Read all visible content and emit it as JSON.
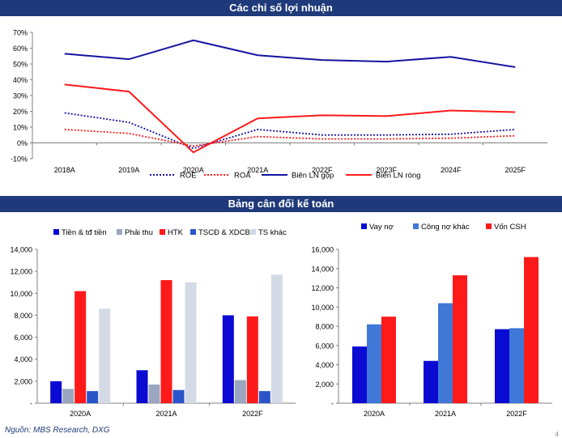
{
  "sections": {
    "profit_title": "Các chỉ số lợi nhuận",
    "balance_title": "Bảng cân đối kế toán"
  },
  "footer": {
    "source": "Nguồn: MBS Research, DXG",
    "page_number": "4"
  },
  "chart_data": [
    {
      "type": "line",
      "title": "",
      "categories": [
        "2018A",
        "2019A",
        "2020A",
        "2021A",
        "2022F",
        "2023F",
        "2024F",
        "2025F"
      ],
      "y_ticks": [
        "70%",
        "60%",
        "50%",
        "40%",
        "30%",
        "20%",
        "10%",
        "0%",
        "-10%"
      ],
      "ylim": [
        -10,
        70
      ],
      "unit": "%",
      "legend_position": "bottom",
      "series": [
        {
          "name": "ROE",
          "color": "#1414a0",
          "style": "dotted",
          "values": [
            19,
            13,
            -3.5,
            8.5,
            5,
            5,
            5.5,
            8.5
          ]
        },
        {
          "name": "ROA",
          "color": "#ff1a1a",
          "style": "dotted",
          "values": [
            8.5,
            6,
            -2,
            4,
            2.5,
            2.5,
            3,
            4.5
          ]
        },
        {
          "name": "Biên LN gộp",
          "color": "#1414a0",
          "style": "solid",
          "values": [
            56.5,
            53,
            65,
            55.5,
            52.5,
            51.5,
            54.5,
            48
          ]
        },
        {
          "name": "Biên LN ròng",
          "color": "#ff1a1a",
          "style": "solid",
          "values": [
            37,
            32.5,
            -6,
            15.5,
            17.5,
            17,
            20.5,
            19.5
          ]
        }
      ]
    },
    {
      "type": "bar",
      "title": "",
      "categories": [
        "2020A",
        "2021A",
        "2022F"
      ],
      "y_ticks": [
        "14,000",
        "12,000",
        "10,000",
        "8,000",
        "6,000",
        "4,000",
        "2,000",
        "-"
      ],
      "ylim": [
        0,
        14000
      ],
      "legend_position": "top",
      "series": [
        {
          "name": "Tiền & tđ tiền",
          "color": "#0a0ad2",
          "values": [
            2000,
            3000,
            8000
          ]
        },
        {
          "name": "Phải thu",
          "color": "#9aa6bf",
          "values": [
            1300,
            1700,
            2100
          ]
        },
        {
          "name": "HTK",
          "color": "#ff1a1a",
          "values": [
            10200,
            11200,
            7900
          ]
        },
        {
          "name": "TSCĐ & XDCB",
          "color": "#2a55c8",
          "values": [
            1100,
            1200,
            1100
          ]
        },
        {
          "name": "TS khác",
          "color": "#d3dae5",
          "values": [
            8600,
            11000,
            11700
          ]
        }
      ]
    },
    {
      "type": "bar",
      "title": "",
      "categories": [
        "2020A",
        "2021A",
        "2022F"
      ],
      "y_ticks": [
        "16,000",
        "14,000",
        "12,000",
        "10,000",
        "8,000",
        "6,000",
        "4,000",
        "2,000",
        "-"
      ],
      "ylim": [
        0,
        16000
      ],
      "legend_position": "top",
      "series": [
        {
          "name": "Vay nợ",
          "color": "#0a0ad2",
          "values": [
            5900,
            4400,
            7700
          ]
        },
        {
          "name": "Công nợ khác",
          "color": "#3f78d6",
          "values": [
            8200,
            10400,
            7800
          ]
        },
        {
          "name": "Vốn CSH",
          "color": "#ff1a1a",
          "values": [
            9000,
            13300,
            15200
          ]
        }
      ]
    }
  ]
}
